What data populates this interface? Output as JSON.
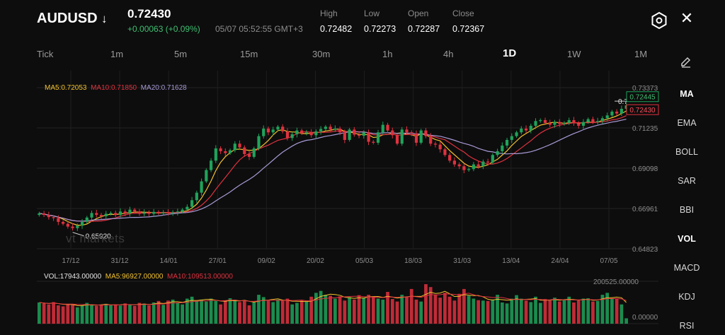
{
  "header": {
    "symbol": "AUDUSD",
    "direction_icon": "down-arrow",
    "last_price": "0.72430",
    "change": "+0.00063",
    "change_pct": "(+0.09%)",
    "datetime": "05/07 05:52:55 GMT+3",
    "stats": [
      {
        "label": "High",
        "value": "0.72482"
      },
      {
        "label": "Low",
        "value": "0.72273"
      },
      {
        "label": "Open",
        "value": "0.72287"
      },
      {
        "label": "Close",
        "value": "0.72367"
      }
    ]
  },
  "icons": {
    "settings": "hexagon-gear-icon",
    "close": "close-icon",
    "draw": "pencil-icon"
  },
  "timeframes": [
    {
      "label": "Tick"
    },
    {
      "label": "1m"
    },
    {
      "label": "5m"
    },
    {
      "label": "15m"
    },
    {
      "label": "30m"
    },
    {
      "label": "1h"
    },
    {
      "label": "4h"
    },
    {
      "label": "1D",
      "active": true
    },
    {
      "label": "1W"
    },
    {
      "label": "1M"
    }
  ],
  "indicators": [
    {
      "label": "MA",
      "active": true
    },
    {
      "label": "EMA"
    },
    {
      "label": "BOLL"
    },
    {
      "label": "SAR"
    },
    {
      "label": "BBI"
    },
    {
      "label": "VOL",
      "active": true
    },
    {
      "label": "MACD"
    },
    {
      "label": "KDJ"
    },
    {
      "label": "RSI"
    }
  ],
  "colors": {
    "up": "#1fa35a",
    "down": "#e0313f",
    "ma5": "#f2c12e",
    "ma10": "#e0313f",
    "ma20": "#a89ad6",
    "bg": "#0d0d0d"
  },
  "ma_legend": {
    "ma5": "MA5:0.72053",
    "ma10": "MA10:0.71850",
    "ma20": "MA20:0.71628"
  },
  "vol_legend": {
    "vol": "VOL:17943.00000",
    "ma5": "MA5:96927.00000",
    "ma10": "MA10:109513.00000"
  },
  "watermark": "vt markets",
  "chart_data": {
    "type": "candlestick",
    "price_axis": {
      "ticks": [
        "0.73373",
        "0.71235",
        "0.69098",
        "0.66961",
        "0.64823"
      ],
      "ylim": [
        0.64823,
        0.73373
      ]
    },
    "x_ticks": [
      "17/12",
      "31/12",
      "14/01",
      "27/01",
      "09/02",
      "20/02",
      "05/03",
      "18/03",
      "31/03",
      "13/04",
      "24/04",
      "07/05"
    ],
    "markers": {
      "low_label": "0.65920",
      "high_label_partial": "0.7",
      "bid_tag": "0.72445",
      "ask_tag": "0.72430"
    },
    "closes": [
      0.667,
      0.6662,
      0.665,
      0.6645,
      0.6625,
      0.6615,
      0.66,
      0.6592,
      0.6605,
      0.6625,
      0.6648,
      0.6672,
      0.6662,
      0.6655,
      0.6668,
      0.6672,
      0.6662,
      0.668,
      0.667,
      0.669,
      0.668,
      0.6668,
      0.6675,
      0.6668,
      0.6678,
      0.6671,
      0.6675,
      0.6672,
      0.6676,
      0.668,
      0.669,
      0.6705,
      0.674,
      0.678,
      0.684,
      0.69,
      0.695,
      0.7015,
      0.7,
      0.699,
      0.7005,
      0.704,
      0.702,
      0.6985,
      0.697,
      0.7015,
      0.708,
      0.712,
      0.71,
      0.7115,
      0.713,
      0.7105,
      0.707,
      0.709,
      0.711,
      0.7095,
      0.71,
      0.7085,
      0.7105,
      0.7118,
      0.713,
      0.7115,
      0.712,
      0.71,
      0.706,
      0.7115,
      0.7088,
      0.7082,
      0.71,
      0.705,
      0.7045,
      0.71,
      0.714,
      0.711,
      0.7085,
      0.704,
      0.7115,
      0.71,
      0.7095,
      0.7045,
      0.711,
      0.708,
      0.704,
      0.7035,
      0.701,
      0.698,
      0.695,
      0.693,
      0.692,
      0.69,
      0.6905,
      0.693,
      0.692,
      0.6945,
      0.694,
      0.698,
      0.7,
      0.703,
      0.706,
      0.708,
      0.71,
      0.712,
      0.711,
      0.7135,
      0.716,
      0.7165,
      0.715,
      0.714,
      0.7155,
      0.7145,
      0.715,
      0.7165,
      0.7148,
      0.7135,
      0.7155,
      0.717,
      0.7155,
      0.716,
      0.7175,
      0.719,
      0.721,
      0.72,
      0.7225,
      0.7243
    ],
    "vol_axis": {
      "ticks": [
        "200525.00000",
        "0.00000"
      ],
      "ylim": [
        0,
        200525
      ]
    },
    "volumes": [
      110,
      105,
      100,
      112,
      95,
      90,
      102,
      98,
      85,
      95,
      108,
      100,
      92,
      97,
      103,
      96,
      100,
      94,
      105,
      99,
      92,
      108,
      104,
      95,
      110,
      118,
      98,
      120,
      125,
      110,
      100,
      130,
      140,
      120,
      125,
      115,
      130,
      118,
      100,
      120,
      132,
      125,
      112,
      118,
      95,
      110,
      150,
      138,
      120,
      112,
      125,
      118,
      130,
      100,
      108,
      122,
      115,
      140,
      160,
      170,
      150,
      145,
      130,
      142,
      120,
      138,
      125,
      148,
      135,
      150,
      142,
      130,
      125,
      165,
      128,
      115,
      150,
      138,
      180,
      125,
      115,
      205,
      190,
      150,
      135,
      160,
      140,
      120,
      155,
      180,
      145,
      130,
      122,
      120,
      118,
      125,
      150,
      110,
      105,
      130,
      148,
      130,
      120,
      112,
      140,
      108,
      128,
      120,
      135,
      115,
      125,
      140,
      110,
      120,
      130,
      132,
      115,
      118,
      150,
      160,
      132,
      130,
      100,
      28
    ]
  }
}
